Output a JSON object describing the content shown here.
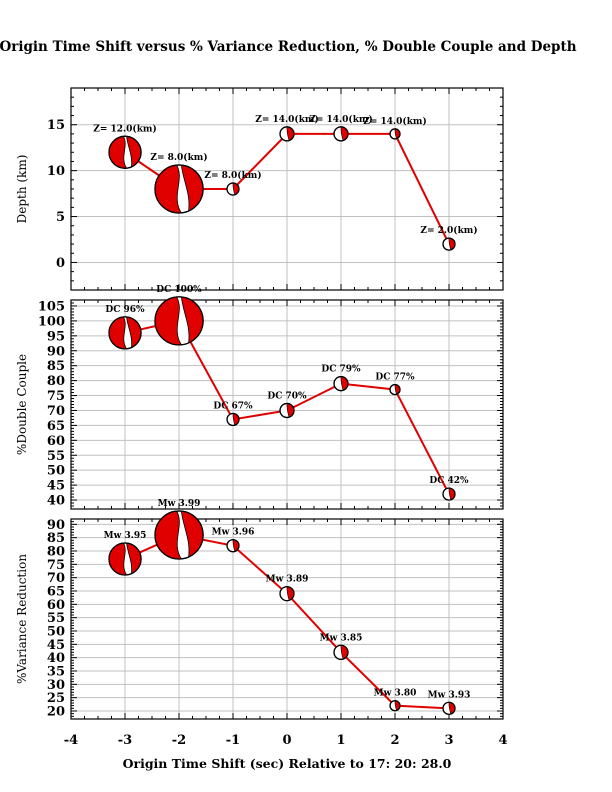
{
  "chart_data": {
    "type": "line",
    "title": "Origin Time Shift versus % Variance Reduction, % Double Couple and Depth",
    "xlabel": "Origin Time Shift (sec) Relative to 17: 20: 28.0",
    "x_range": [
      -4,
      4
    ],
    "x_ticks": [
      "-4",
      "-3",
      "-2",
      "-1",
      "0",
      "1",
      "2",
      "3",
      "4"
    ],
    "x": [
      -3,
      -2,
      -1,
      0,
      1,
      2,
      3
    ],
    "colors": {
      "line": "#e00000",
      "beachball": "#e00000",
      "grid": "#c0c0c0"
    },
    "panels": [
      {
        "id": "depth",
        "ylabel": "Depth (km)",
        "y_range": [
          -3,
          19
        ],
        "y_ticks": [
          "0",
          "5",
          "10",
          "15"
        ],
        "values": [
          12,
          8,
          8,
          14,
          14,
          14,
          2
        ],
        "labels": [
          "Z= 12.0(km)",
          "Z= 8.0(km)",
          "Z= 8.0(km)",
          "Z= 14.0(km)",
          "Z= 14.0(km)",
          "Z= 14.0(km)",
          "Z= 2.0(km)"
        ]
      },
      {
        "id": "double_couple",
        "ylabel": "%Double Couple",
        "y_range": [
          37,
          107
        ],
        "y_ticks": [
          "40",
          "45",
          "50",
          "55",
          "60",
          "65",
          "70",
          "75",
          "80",
          "85",
          "90",
          "95",
          "100",
          "105"
        ],
        "values": [
          96,
          100,
          67,
          70,
          79,
          77,
          42
        ],
        "labels": [
          "DC 96%",
          "DC 100%",
          "DC 67%",
          "DC 70%",
          "DC 79%",
          "DC 77%",
          "DC 42%"
        ]
      },
      {
        "id": "variance_reduction",
        "ylabel": "%Variance Reduction",
        "y_range": [
          17,
          92
        ],
        "y_ticks": [
          "20",
          "25",
          "30",
          "35",
          "40",
          "45",
          "50",
          "55",
          "60",
          "65",
          "70",
          "75",
          "80",
          "85",
          "90"
        ],
        "values": [
          77,
          86,
          82,
          64,
          42,
          22,
          21
        ],
        "labels": [
          "Mw 3.95",
          "Mw 3.99",
          "Mw 3.96",
          "Mw 3.89",
          "Mw 3.85",
          "Mw 3.80",
          "Mw 3.93"
        ]
      }
    ],
    "magnitudes": [
      3.95,
      3.99,
      3.96,
      3.89,
      3.85,
      3.8,
      3.93
    ]
  }
}
